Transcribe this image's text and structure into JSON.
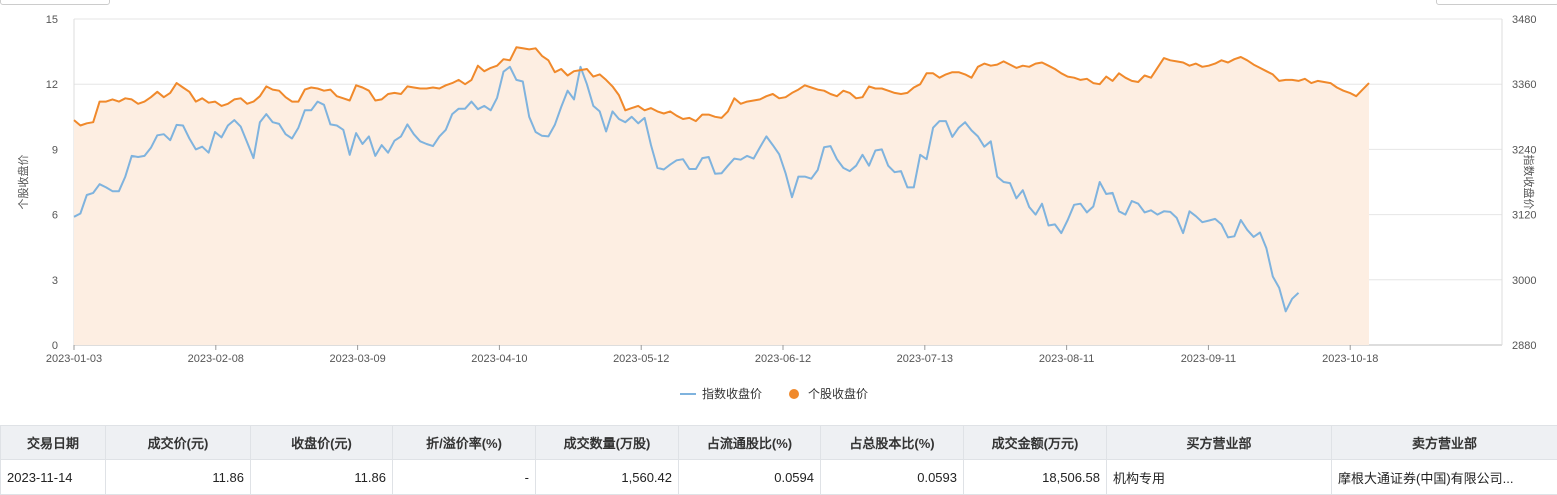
{
  "chart_data": {
    "type": "line",
    "left_axis": {
      "label": "个股收盘价",
      "ticks": [
        0,
        3,
        6,
        9,
        12,
        15
      ],
      "range": [
        0,
        15
      ]
    },
    "right_axis": {
      "label": "指数收盘价",
      "ticks": [
        2880,
        3000,
        3120,
        3240,
        3360,
        3480
      ],
      "range": [
        2880,
        3480
      ]
    },
    "x_tick_labels": [
      "2023-01-03",
      "2023-02-08",
      "2023-03-09",
      "2023-04-10",
      "2023-05-12",
      "2023-06-12",
      "2023-07-13",
      "2023-08-11",
      "2023-09-11",
      "2023-10-18"
    ],
    "legend": [
      "指数收盘价",
      "个股收盘价"
    ],
    "colors": {
      "index": "#7fb3de",
      "stock": "#f0892b",
      "area": "#fdeee2"
    },
    "series": [
      {
        "name": "个股收盘价",
        "axis": "left",
        "values": [
          10.35,
          10.1,
          10.2,
          10.25,
          11.2,
          11.2,
          11.3,
          11.2,
          11.35,
          11.3,
          11.1,
          11.2,
          11.4,
          11.65,
          11.4,
          11.6,
          12.05,
          11.85,
          11.65,
          11.2,
          11.35,
          11.15,
          11.2,
          11.0,
          11.1,
          11.3,
          11.35,
          11.1,
          11.2,
          11.45,
          11.9,
          11.75,
          11.7,
          11.4,
          11.2,
          11.2,
          11.75,
          11.85,
          11.8,
          11.7,
          11.75,
          11.45,
          11.35,
          11.25,
          11.95,
          11.85,
          11.7,
          11.25,
          11.3,
          11.55,
          11.6,
          11.55,
          11.9,
          11.85,
          11.8,
          11.8,
          11.85,
          11.8,
          11.95,
          12.05,
          12.2,
          12.0,
          12.2,
          12.85,
          12.6,
          12.75,
          12.85,
          13.15,
          13.1,
          13.7,
          13.65,
          13.6,
          13.65,
          13.3,
          13.1,
          12.55,
          12.7,
          12.4,
          12.6,
          12.65,
          12.7,
          12.35,
          12.45,
          12.2,
          11.9,
          11.5,
          10.8,
          10.9,
          11.0,
          10.8,
          10.9,
          10.75,
          10.65,
          10.75,
          10.55,
          10.4,
          10.45,
          10.3,
          10.6,
          10.6,
          10.5,
          10.45,
          10.75,
          11.35,
          11.1,
          11.2,
          11.25,
          11.3,
          11.45,
          11.55,
          11.35,
          11.4,
          11.6,
          11.75,
          11.95,
          11.85,
          11.75,
          11.7,
          11.55,
          11.45,
          11.7,
          11.6,
          11.35,
          11.4,
          11.9,
          11.8,
          11.8,
          11.7,
          11.6,
          11.55,
          11.6,
          11.85,
          12.0,
          12.5,
          12.5,
          12.3,
          12.45,
          12.55,
          12.55,
          12.45,
          12.3,
          12.8,
          12.95,
          12.85,
          12.9,
          13.05,
          12.9,
          12.75,
          12.85,
          12.8,
          12.95,
          13.0,
          12.85,
          12.7,
          12.5,
          12.35,
          12.3,
          12.2,
          12.25,
          12.05,
          12.0,
          12.35,
          12.15,
          12.5,
          12.3,
          12.15,
          12.1,
          12.4,
          12.3,
          12.75,
          13.2,
          13.1,
          13.05,
          13.0,
          12.85,
          12.95,
          12.8,
          12.85,
          12.95,
          13.1,
          13.0,
          13.15,
          13.25,
          13.1,
          12.9,
          12.75,
          12.6,
          12.45,
          12.15,
          12.2,
          12.2,
          12.15,
          12.25,
          12.05,
          12.15,
          12.1,
          12.05,
          11.85,
          11.7,
          11.6,
          11.45,
          11.75,
          12.05
        ]
      },
      {
        "name": "指数收盘价",
        "axis": "right",
        "values": [
          3116,
          3122,
          3156,
          3160,
          3176,
          3170,
          3163,
          3163,
          3190,
          3228,
          3226,
          3228,
          3243,
          3266,
          3268,
          3257,
          3285,
          3284,
          3260,
          3240,
          3245,
          3234,
          3272,
          3262,
          3284,
          3294,
          3282,
          3253,
          3224,
          3290,
          3305,
          3290,
          3287,
          3268,
          3260,
          3280,
          3312,
          3312,
          3328,
          3322,
          3286,
          3284,
          3276,
          3230,
          3270,
          3250,
          3264,
          3228,
          3248,
          3234,
          3256,
          3264,
          3286,
          3268,
          3255,
          3250,
          3246,
          3264,
          3276,
          3305,
          3315,
          3315,
          3328,
          3314,
          3320,
          3312,
          3335,
          3383,
          3392,
          3368,
          3365,
          3300,
          3272,
          3265,
          3264,
          3285,
          3318,
          3348,
          3332,
          3392,
          3360,
          3320,
          3310,
          3273,
          3310,
          3296,
          3290,
          3300,
          3288,
          3298,
          3248,
          3206,
          3203,
          3212,
          3220,
          3222,
          3204,
          3204,
          3224,
          3226,
          3195,
          3196,
          3210,
          3223,
          3221,
          3228,
          3223,
          3244,
          3264,
          3248,
          3231,
          3196,
          3152,
          3190,
          3190,
          3186,
          3202,
          3244,
          3246,
          3222,
          3206,
          3200,
          3210,
          3230,
          3210,
          3238,
          3240,
          3210,
          3198,
          3200,
          3170,
          3170,
          3230,
          3222,
          3280,
          3292,
          3292,
          3263,
          3280,
          3290,
          3275,
          3264,
          3245,
          3255,
          3190,
          3180,
          3178,
          3150,
          3165,
          3134,
          3120,
          3140,
          3100,
          3102,
          3086,
          3110,
          3138,
          3140,
          3124,
          3135,
          3180,
          3158,
          3160,
          3126,
          3120,
          3145,
          3140,
          3124,
          3128,
          3120,
          3126,
          3125,
          3114,
          3086,
          3126,
          3117,
          3106,
          3109,
          3112,
          3102,
          3078,
          3080,
          3110,
          3092,
          3079,
          3087,
          3058,
          3006,
          2985,
          2942,
          2965,
          2976
        ]
      }
    ]
  },
  "table": {
    "headers": [
      "交易日期",
      "成交价(元)",
      "收盘价(元)",
      "折/溢价率(%)",
      "成交数量(万股)",
      "占流通股比(%)",
      "占总股本比(%)",
      "成交金额(万元)",
      "买方营业部",
      "卖方营业部"
    ],
    "rows": [
      [
        "2023-11-14",
        "11.86",
        "11.86",
        "-",
        "1,560.42",
        "0.0594",
        "0.0593",
        "18,506.58",
        "机构专用",
        "摩根大通证券(中国)有限公司..."
      ]
    ]
  }
}
